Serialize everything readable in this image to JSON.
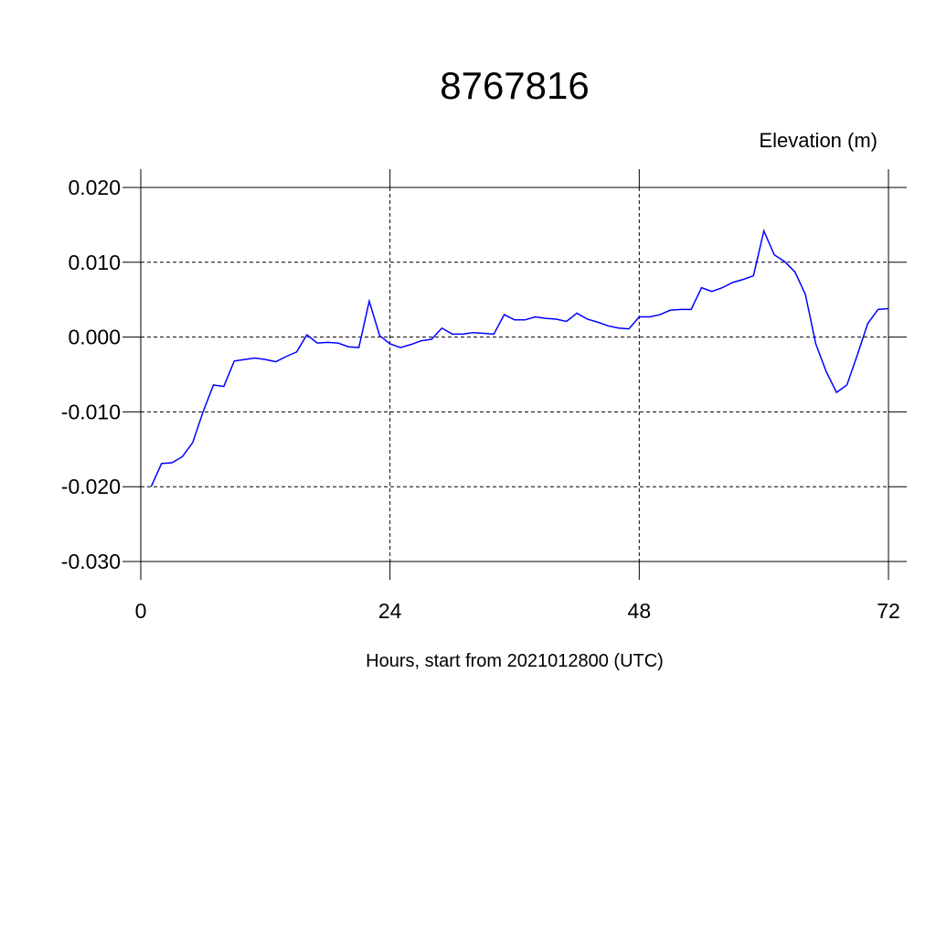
{
  "chart_data": {
    "type": "line",
    "title": "8767816",
    "subtitle": "Elevation (m)",
    "x_label": "Hours, start from 2021012800 (UTC)",
    "x": [
      1,
      2,
      3,
      4,
      5,
      6,
      7,
      8,
      9,
      10,
      11,
      12,
      13,
      14,
      15,
      16,
      17,
      18,
      19,
      20,
      21,
      22,
      23,
      24,
      25,
      26,
      27,
      28,
      29,
      30,
      31,
      32,
      33,
      34,
      35,
      36,
      37,
      38,
      39,
      40,
      41,
      42,
      43,
      44,
      45,
      46,
      47,
      48,
      49,
      50,
      51,
      52,
      53,
      54,
      55,
      56,
      57,
      58,
      59,
      60,
      61,
      62,
      63,
      64,
      65,
      66,
      67,
      68,
      69,
      70,
      71,
      72
    ],
    "series": [
      {
        "name": "Elevation",
        "color": "#0000ff",
        "values": [
          -0.02,
          -0.0169,
          -0.0168,
          -0.016,
          -0.0141,
          -0.01,
          -0.0064,
          -0.0066,
          -0.0032,
          -0.003,
          -0.0028,
          -0.003,
          -0.0033,
          -0.0026,
          -0.002,
          0.0003,
          -0.0008,
          -0.0007,
          -0.0008,
          -0.0013,
          -0.0014,
          0.0048,
          0.0002,
          -0.0009,
          -0.0014,
          -0.001,
          -0.0005,
          -0.0003,
          0.0012,
          0.0004,
          0.0004,
          0.0006,
          0.0005,
          0.0004,
          0.003,
          0.0023,
          0.0023,
          0.0027,
          0.0025,
          0.0024,
          0.0021,
          0.0032,
          0.0024,
          0.002,
          0.0015,
          0.0012,
          0.0011,
          0.0027,
          0.0027,
          0.003,
          0.0036,
          0.0037,
          0.0037,
          0.0066,
          0.0061,
          0.0066,
          0.0073,
          0.0077,
          0.0082,
          0.0142,
          0.011,
          0.0101,
          0.0087,
          0.0057,
          -0.0009,
          -0.0046,
          -0.0074,
          -0.0064,
          -0.0024,
          0.0018,
          0.0037,
          0.0038
        ]
      }
    ],
    "xlim": [
      0,
      72
    ],
    "xticks": [
      0,
      24,
      48,
      72
    ],
    "ylim": [
      -0.03,
      0.02
    ],
    "yticks": [
      {
        "value": -0.03,
        "label": "-0.030"
      },
      {
        "value": -0.02,
        "label": "-0.020"
      },
      {
        "value": -0.01,
        "label": "-0.010"
      },
      {
        "value": 0,
        "label": "0.000"
      },
      {
        "value": 0.01,
        "label": "0.010"
      },
      {
        "value": 0.02,
        "label": "0.020"
      }
    ],
    "grid": true
  }
}
